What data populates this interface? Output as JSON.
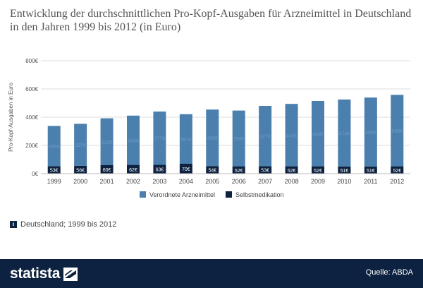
{
  "title": "Entwicklung der durchschnittlichen Pro-Kopf-Ausgaben für Arzneimittel in Deutschland in den Jahren 1999 bis 2012 (in Euro)",
  "chart_data": {
    "type": "bar",
    "stacked": true,
    "categories": [
      "1999",
      "2000",
      "2001",
      "2002",
      "2003",
      "2004",
      "2005",
      "2006",
      "2007",
      "2008",
      "2009",
      "2010",
      "2011",
      "2012"
    ],
    "series": [
      {
        "name": "Verordnete Arzneimittel",
        "color": "#4a7fae",
        "values": [
          285,
          297,
          332,
          349,
          377,
          351,
          400,
          395,
          427,
          442,
          463,
          474,
          488,
          506
        ],
        "labels": [
          "285€",
          "297€",
          "332€",
          "349€",
          "377€",
          "351€",
          "400€",
          "395€",
          "427€",
          "442€",
          "463€",
          "474€",
          "488€",
          "506€"
        ]
      },
      {
        "name": "Selbstmedikation",
        "color": "#0d2240",
        "values": [
          53,
          56,
          60,
          62,
          63,
          70,
          54,
          52,
          53,
          52,
          52,
          51,
          51,
          52
        ],
        "labels": [
          "53€",
          "56€",
          "60€",
          "62€",
          "63€",
          "70€",
          "54€",
          "52€",
          "53€",
          "52€",
          "52€",
          "51€",
          "51€",
          "52€"
        ]
      }
    ],
    "ylabel": "Pro-Kopf-Ausgaben in Euro",
    "yticks": [
      0,
      200,
      400,
      600,
      800
    ],
    "ytick_labels": [
      "0€",
      "200€",
      "400€",
      "600€",
      "800€"
    ],
    "ylim": [
      0,
      800
    ],
    "grid": true,
    "legend_position": "bottom"
  },
  "info": {
    "icon": "info-icon",
    "text": "Deutschland; 1999 bis 2012"
  },
  "footer": {
    "brand": "statista",
    "source": "Quelle: ABDA",
    "background": "#0d2240"
  }
}
